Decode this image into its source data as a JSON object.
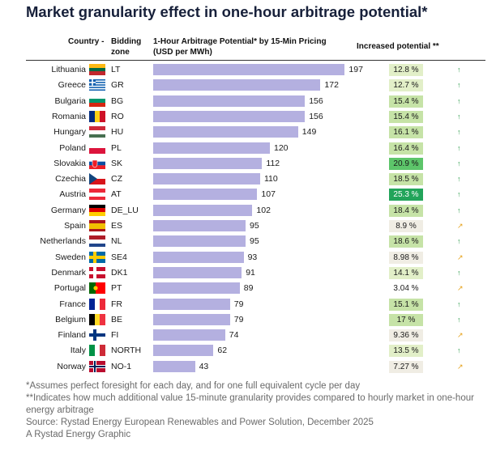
{
  "title": "Market granularity effect in one-hour arbitrage potential*",
  "headers": {
    "country": "Country -",
    "zone_line1": "Bidding",
    "zone_line2": "zone",
    "potential_line1": "1-Hour Arbitrage Potential* by 15-Min Pricing",
    "potential_line2": "(USD per MWh)",
    "increase": "Increased potential **"
  },
  "colors": {
    "bar": "#b4b0e0",
    "increase_light": "#e2efc8",
    "increase_mid": "#c6e3a7",
    "increase_strong": "#5dc56a",
    "increase_strongest": "#22a45a",
    "neutral": "#f0ede4",
    "arrow_up": "#2e9d4c",
    "arrow_side": "#e6a21c"
  },
  "chart_data": {
    "type": "bar",
    "orientation": "horizontal",
    "title": "1-Hour Arbitrage Potential* by 15-Min Pricing",
    "xlabel": "(USD per MWh)",
    "xlim": [
      0,
      200
    ],
    "grid": false,
    "rows": [
      {
        "country": "Lithuania",
        "zone": "LT",
        "value": 197,
        "increase": "12.8 %",
        "tone": "increase_light",
        "arrow": "up",
        "flag": "lt"
      },
      {
        "country": "Greece",
        "zone": "GR",
        "value": 172,
        "increase": "12.7 %",
        "tone": "increase_light",
        "arrow": "up",
        "flag": "gr"
      },
      {
        "country": "Bulgaria",
        "zone": "BG",
        "value": 156,
        "increase": "15.4 %",
        "tone": "increase_mid",
        "arrow": "up",
        "flag": "bg"
      },
      {
        "country": "Romania",
        "zone": "RO",
        "value": 156,
        "increase": "15.4 %",
        "tone": "increase_mid",
        "arrow": "up",
        "flag": "ro"
      },
      {
        "country": "Hungary",
        "zone": "HU",
        "value": 149,
        "increase": "16.1 %",
        "tone": "increase_mid",
        "arrow": "up",
        "flag": "hu"
      },
      {
        "country": "Poland",
        "zone": "PL",
        "value": 120,
        "increase": "16.4 %",
        "tone": "increase_mid",
        "arrow": "up",
        "flag": "pl"
      },
      {
        "country": "Slovakia",
        "zone": "SK",
        "value": 112,
        "increase": "20.9 %",
        "tone": "increase_strong",
        "arrow": "up",
        "flag": "sk"
      },
      {
        "country": "Czechia",
        "zone": "CZ",
        "value": 110,
        "increase": "18.5 %",
        "tone": "increase_mid",
        "arrow": "up",
        "flag": "cz"
      },
      {
        "country": "Austria",
        "zone": "AT",
        "value": 107,
        "increase": "25.3 %",
        "tone": "increase_strongest",
        "arrow": "up",
        "flag": "at"
      },
      {
        "country": "Germany",
        "zone": "DE_LU",
        "value": 102,
        "increase": "18.4 %",
        "tone": "increase_mid",
        "arrow": "up",
        "flag": "de"
      },
      {
        "country": "Spain",
        "zone": "ES",
        "value": 95,
        "increase": "8.9 %",
        "tone": "neutral",
        "arrow": "side",
        "flag": "es"
      },
      {
        "country": "Netherlands",
        "zone": "NL",
        "value": 95,
        "increase": "18.6 %",
        "tone": "increase_mid",
        "arrow": "up",
        "flag": "nl"
      },
      {
        "country": "Sweden",
        "zone": "SE4",
        "value": 93,
        "increase": "8.98 %",
        "tone": "neutral",
        "arrow": "side",
        "flag": "se"
      },
      {
        "country": "Denmark",
        "zone": "DK1",
        "value": 91,
        "increase": "14.1 %",
        "tone": "increase_light",
        "arrow": "up",
        "flag": "dk"
      },
      {
        "country": "Portugal",
        "zone": "PT",
        "value": 89,
        "increase": "3.04 %",
        "tone": "none",
        "arrow": "side",
        "flag": "pt"
      },
      {
        "country": "France",
        "zone": "FR",
        "value": 79,
        "increase": "15.1 %",
        "tone": "increase_mid",
        "arrow": "up",
        "flag": "fr"
      },
      {
        "country": "Belgium",
        "zone": "BE",
        "value": 79,
        "increase": "17 %",
        "tone": "increase_mid",
        "arrow": "up",
        "flag": "be"
      },
      {
        "country": "Finland",
        "zone": "FI",
        "value": 74,
        "increase": "9.36 %",
        "tone": "neutral",
        "arrow": "side",
        "flag": "fi"
      },
      {
        "country": "Italy",
        "zone": "NORTH",
        "value": 62,
        "increase": "13.5 %",
        "tone": "increase_light",
        "arrow": "up",
        "flag": "it"
      },
      {
        "country": "Norway",
        "zone": "NO-1",
        "value": 43,
        "increase": "7.27 %",
        "tone": "neutral",
        "arrow": "side",
        "flag": "no"
      }
    ]
  },
  "footnotes": {
    "note1": "*Assumes perfect foresight for each day, and for one full equivalent cycle per day",
    "note2": "**Indicates how much additional value 15-minute granularity provides compared to hourly market in one-hour energy arbitrage",
    "source": "Source: Rystad Energy European Renewables and Power Solution, December 2025",
    "credit": "A Rystad Energy Graphic"
  }
}
